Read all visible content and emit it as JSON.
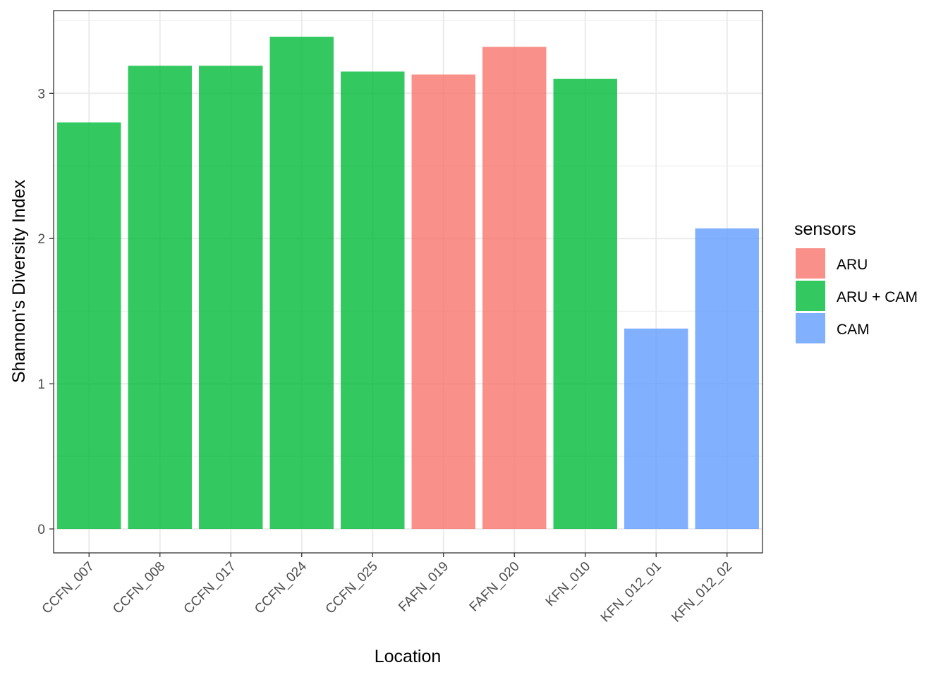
{
  "chart_data": {
    "type": "bar",
    "title": "",
    "xlabel": "Location",
    "ylabel": "Shannon's Diversity Index",
    "ylim": [
      -0.165,
      3.57
    ],
    "yticks": [
      0,
      1,
      2,
      3
    ],
    "grid": true,
    "legend_position": "right",
    "categories": [
      "CCFN_007",
      "CCFN_008",
      "CCFN_017",
      "CCFN_024",
      "CCFN_025",
      "FAFN_019",
      "FAFN_020",
      "KFN_010",
      "KFN_012_01",
      "KFN_012_02"
    ],
    "values": [
      2.8,
      3.19,
      3.19,
      3.39,
      3.15,
      3.13,
      3.32,
      3.1,
      1.38,
      2.07
    ],
    "groups": [
      "ARU + CAM",
      "ARU + CAM",
      "ARU + CAM",
      "ARU + CAM",
      "ARU + CAM",
      "ARU",
      "ARU",
      "ARU + CAM",
      "CAM",
      "CAM"
    ],
    "legend": {
      "title": "sensors",
      "entries": [
        {
          "name": "ARU",
          "color": "#F8766D"
        },
        {
          "name": "ARU + CAM",
          "color": "#00BA38"
        },
        {
          "name": "CAM",
          "color": "#619CFF"
        }
      ]
    },
    "bar_opacity": 0.8
  }
}
